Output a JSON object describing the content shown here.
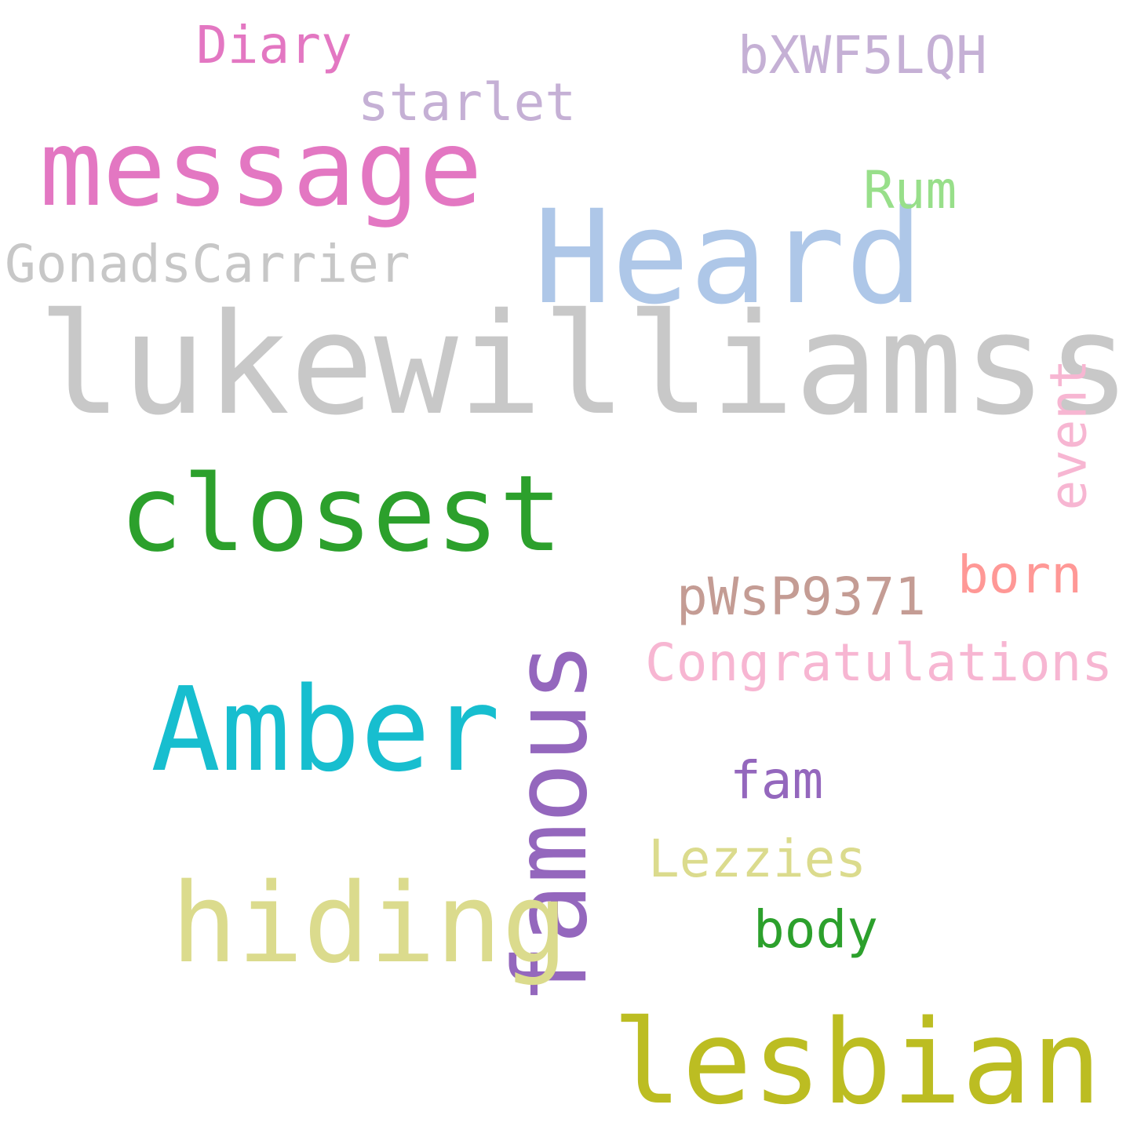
{
  "words": [
    {
      "id": "lukewilliamss",
      "text": "lukewilliamss",
      "color": "#c8c8c8"
    },
    {
      "id": "heard",
      "text": "Heard",
      "color": "#aec7e8"
    },
    {
      "id": "message",
      "text": "message",
      "color": "#e377c2"
    },
    {
      "id": "closest",
      "text": "closest",
      "color": "#2ca02c"
    },
    {
      "id": "amber",
      "text": "Amber",
      "color": "#17becf"
    },
    {
      "id": "famous",
      "text": "famous",
      "color": "#9467bd"
    },
    {
      "id": "hiding",
      "text": "hiding",
      "color": "#dbdb8d"
    },
    {
      "id": "lesbian",
      "text": "lesbian",
      "color": "#bcbd22"
    },
    {
      "id": "gonadscarrier",
      "text": "GonadsCarrier",
      "color": "#c7c7c7"
    },
    {
      "id": "diary",
      "text": "Diary",
      "color": "#e377c2"
    },
    {
      "id": "starlet",
      "text": "starlet",
      "color": "#c5b0d5"
    },
    {
      "id": "bxwf5lqh",
      "text": "bXWF5LQH",
      "color": "#c5b0d5"
    },
    {
      "id": "rum",
      "text": "Rum",
      "color": "#98df8a"
    },
    {
      "id": "event",
      "text": "event",
      "color": "#f7b6d2"
    },
    {
      "id": "born",
      "text": "born",
      "color": "#ff9896"
    },
    {
      "id": "pwsp9371",
      "text": "pWsP9371",
      "color": "#c49c94"
    },
    {
      "id": "congratulations",
      "text": "Congratulations",
      "color": "#f7b6d2"
    },
    {
      "id": "fam",
      "text": "fam",
      "color": "#9467bd"
    },
    {
      "id": "lezzies",
      "text": "Lezzies",
      "color": "#dbdb8d"
    },
    {
      "id": "body",
      "text": "body",
      "color": "#2ca02c"
    }
  ]
}
